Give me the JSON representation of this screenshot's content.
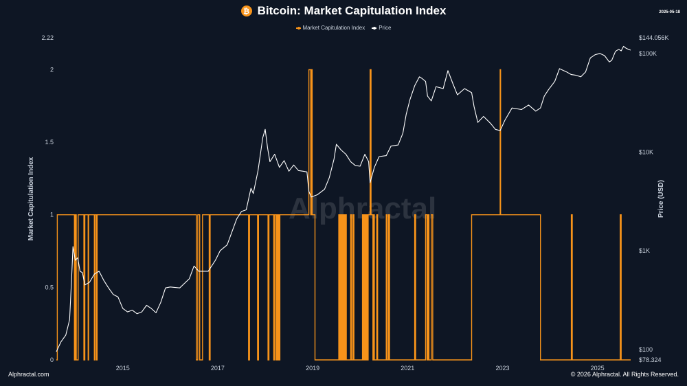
{
  "header": {
    "title": "Bitcoin: Market Capitulation Index",
    "date": "2025-05-18",
    "icon": "bitcoin-icon"
  },
  "legend": {
    "mci_label": "Market Capitulation Index",
    "price_label": "Price"
  },
  "footer": {
    "left": "Alphractal.com",
    "right": "© 2026 Alphractal. All Rights Reserved."
  },
  "watermark": "Alphractal",
  "colors": {
    "background": "#0e1624",
    "mci": "#f7931a",
    "price": "#ffffff"
  },
  "chart_data": {
    "type": "line",
    "title": "Bitcoin: Market Capitulation Index",
    "grid": false,
    "legend_position": "top-center",
    "x_range": [
      2013.6,
      2025.7
    ],
    "x_ticks": [
      {
        "value": 2015,
        "label": "2015"
      },
      {
        "value": 2017,
        "label": "2017"
      },
      {
        "value": 2019,
        "label": "2019"
      },
      {
        "value": 2021,
        "label": "2021"
      },
      {
        "value": 2023,
        "label": "2023"
      },
      {
        "value": 2025,
        "label": "2025"
      }
    ],
    "y_left": {
      "label": "Market Capitulation Index",
      "range": [
        0,
        2.22
      ],
      "ticks": [
        {
          "value": 0,
          "label": "0"
        },
        {
          "value": 0.5,
          "label": "0.5"
        },
        {
          "value": 1,
          "label": "1"
        },
        {
          "value": 1.5,
          "label": "1.5"
        },
        {
          "value": 2,
          "label": "2"
        },
        {
          "value": 2.22,
          "label": "2.22"
        }
      ]
    },
    "y_right": {
      "label": "Price (USD)",
      "scale": "log",
      "range": [
        78.324,
        144056
      ],
      "ticks": [
        {
          "value": 78.324,
          "label": "$78.324"
        },
        {
          "value": 100,
          "label": "$100"
        },
        {
          "value": 1000,
          "label": "$1K"
        },
        {
          "value": 10000,
          "label": "$10K"
        },
        {
          "value": 100000,
          "label": "$100K"
        },
        {
          "value": 144056,
          "label": "$144.056K"
        }
      ]
    },
    "series": [
      {
        "name": "Market Capitulation Index",
        "color": "#f7931a",
        "step": true,
        "points": [
          [
            2013.6,
            0
          ],
          [
            2013.62,
            1
          ],
          [
            2013.98,
            0
          ],
          [
            2014.0,
            1
          ],
          [
            2014.02,
            0
          ],
          [
            2014.06,
            1
          ],
          [
            2014.18,
            0
          ],
          [
            2014.2,
            1
          ],
          [
            2014.27,
            0
          ],
          [
            2014.28,
            1
          ],
          [
            2014.4,
            0
          ],
          [
            2014.42,
            1
          ],
          [
            2014.45,
            0
          ],
          [
            2014.46,
            1
          ],
          [
            2016.55,
            0
          ],
          [
            2016.58,
            1
          ],
          [
            2016.62,
            0
          ],
          [
            2016.68,
            1
          ],
          [
            2016.82,
            0
          ],
          [
            2016.84,
            1
          ],
          [
            2017.65,
            0
          ],
          [
            2017.67,
            1
          ],
          [
            2017.84,
            0
          ],
          [
            2017.86,
            1
          ],
          [
            2018.06,
            0
          ],
          [
            2018.08,
            1
          ],
          [
            2018.18,
            0
          ],
          [
            2018.2,
            1
          ],
          [
            2018.23,
            0
          ],
          [
            2018.24,
            1
          ],
          [
            2018.25,
            0
          ],
          [
            2018.27,
            1
          ],
          [
            2018.29,
            0
          ],
          [
            2018.31,
            1
          ],
          [
            2018.92,
            2
          ],
          [
            2018.96,
            1
          ],
          [
            2018.97,
            2
          ],
          [
            2018.99,
            1
          ],
          [
            2019.05,
            0
          ],
          [
            2019.55,
            1
          ],
          [
            2019.57,
            0
          ],
          [
            2019.59,
            1
          ],
          [
            2019.6,
            0
          ],
          [
            2019.62,
            1
          ],
          [
            2019.64,
            0
          ],
          [
            2019.66,
            1
          ],
          [
            2019.68,
            0
          ],
          [
            2019.69,
            1
          ],
          [
            2019.71,
            0
          ],
          [
            2019.8,
            1
          ],
          [
            2019.82,
            0
          ],
          [
            2019.85,
            1
          ],
          [
            2019.87,
            0
          ],
          [
            2020.05,
            1
          ],
          [
            2020.07,
            0
          ],
          [
            2020.09,
            1
          ],
          [
            2020.11,
            0
          ],
          [
            2020.13,
            1
          ],
          [
            2020.15,
            0
          ],
          [
            2020.17,
            1
          ],
          [
            2020.21,
            2
          ],
          [
            2020.23,
            1
          ],
          [
            2020.27,
            0
          ],
          [
            2020.28,
            1
          ],
          [
            2020.3,
            0
          ],
          [
            2020.35,
            1
          ],
          [
            2020.37,
            0
          ],
          [
            2020.55,
            1
          ],
          [
            2020.57,
            0
          ],
          [
            2020.6,
            1
          ],
          [
            2020.62,
            0
          ],
          [
            2021.15,
            1
          ],
          [
            2021.17,
            0
          ],
          [
            2021.38,
            1
          ],
          [
            2021.41,
            0
          ],
          [
            2021.43,
            1
          ],
          [
            2021.45,
            0
          ],
          [
            2021.5,
            1
          ],
          [
            2021.53,
            0
          ],
          [
            2022.35,
            1
          ],
          [
            2022.95,
            2
          ],
          [
            2022.96,
            1
          ],
          [
            2023.8,
            0
          ],
          [
            2024.45,
            1
          ],
          [
            2024.47,
            0
          ],
          [
            2025.48,
            1
          ],
          [
            2025.5,
            0
          ],
          [
            2025.7,
            0
          ]
        ]
      },
      {
        "name": "Price",
        "color": "#ffffff",
        "points": [
          [
            2013.6,
            95
          ],
          [
            2013.7,
            120
          ],
          [
            2013.8,
            140
          ],
          [
            2013.88,
            200
          ],
          [
            2013.92,
            500
          ],
          [
            2013.95,
            1100
          ],
          [
            2014.0,
            800
          ],
          [
            2014.05,
            850
          ],
          [
            2014.1,
            620
          ],
          [
            2014.15,
            600
          ],
          [
            2014.2,
            450
          ],
          [
            2014.3,
            480
          ],
          [
            2014.4,
            580
          ],
          [
            2014.5,
            620
          ],
          [
            2014.6,
            500
          ],
          [
            2014.7,
            420
          ],
          [
            2014.8,
            360
          ],
          [
            2014.9,
            340
          ],
          [
            2015.0,
            260
          ],
          [
            2015.1,
            240
          ],
          [
            2015.2,
            250
          ],
          [
            2015.3,
            230
          ],
          [
            2015.4,
            240
          ],
          [
            2015.5,
            280
          ],
          [
            2015.6,
            260
          ],
          [
            2015.7,
            235
          ],
          [
            2015.8,
            300
          ],
          [
            2015.9,
            420
          ],
          [
            2016.0,
            430
          ],
          [
            2016.2,
            420
          ],
          [
            2016.4,
            520
          ],
          [
            2016.5,
            700
          ],
          [
            2016.6,
            620
          ],
          [
            2016.8,
            620
          ],
          [
            2016.95,
            800
          ],
          [
            2017.05,
            1000
          ],
          [
            2017.2,
            1150
          ],
          [
            2017.4,
            2100
          ],
          [
            2017.5,
            2500
          ],
          [
            2017.6,
            2600
          ],
          [
            2017.7,
            4300
          ],
          [
            2017.75,
            3800
          ],
          [
            2017.85,
            6500
          ],
          [
            2017.95,
            14000
          ],
          [
            2018.0,
            17000
          ],
          [
            2018.05,
            11000
          ],
          [
            2018.1,
            8000
          ],
          [
            2018.2,
            9500
          ],
          [
            2018.3,
            7000
          ],
          [
            2018.4,
            8200
          ],
          [
            2018.5,
            6400
          ],
          [
            2018.6,
            7400
          ],
          [
            2018.7,
            6500
          ],
          [
            2018.8,
            6400
          ],
          [
            2018.88,
            6300
          ],
          [
            2018.92,
            4000
          ],
          [
            2018.97,
            3500
          ],
          [
            2019.1,
            3700
          ],
          [
            2019.25,
            4200
          ],
          [
            2019.35,
            5500
          ],
          [
            2019.45,
            8500
          ],
          [
            2019.5,
            12000
          ],
          [
            2019.6,
            10500
          ],
          [
            2019.7,
            9500
          ],
          [
            2019.8,
            8000
          ],
          [
            2019.9,
            7300
          ],
          [
            2020.0,
            7200
          ],
          [
            2020.1,
            9500
          ],
          [
            2020.18,
            8000
          ],
          [
            2020.21,
            4900
          ],
          [
            2020.3,
            7000
          ],
          [
            2020.4,
            9000
          ],
          [
            2020.55,
            9200
          ],
          [
            2020.65,
            11500
          ],
          [
            2020.8,
            11800
          ],
          [
            2020.9,
            15500
          ],
          [
            2020.97,
            24000
          ],
          [
            2021.05,
            34000
          ],
          [
            2021.15,
            47000
          ],
          [
            2021.25,
            58000
          ],
          [
            2021.3,
            56000
          ],
          [
            2021.38,
            52000
          ],
          [
            2021.42,
            37000
          ],
          [
            2021.5,
            33000
          ],
          [
            2021.6,
            46000
          ],
          [
            2021.75,
            44000
          ],
          [
            2021.85,
            67000
          ],
          [
            2021.95,
            50000
          ],
          [
            2022.05,
            38000
          ],
          [
            2022.2,
            44000
          ],
          [
            2022.35,
            40000
          ],
          [
            2022.4,
            29000
          ],
          [
            2022.48,
            20000
          ],
          [
            2022.6,
            23000
          ],
          [
            2022.75,
            19500
          ],
          [
            2022.85,
            17000
          ],
          [
            2022.95,
            16500
          ],
          [
            2023.05,
            21000
          ],
          [
            2023.2,
            28000
          ],
          [
            2023.4,
            27000
          ],
          [
            2023.55,
            30000
          ],
          [
            2023.7,
            26000
          ],
          [
            2023.8,
            28000
          ],
          [
            2023.88,
            37000
          ],
          [
            2023.97,
            43000
          ],
          [
            2024.1,
            52000
          ],
          [
            2024.2,
            70000
          ],
          [
            2024.35,
            65000
          ],
          [
            2024.45,
            61000
          ],
          [
            2024.55,
            60000
          ],
          [
            2024.65,
            58000
          ],
          [
            2024.75,
            65000
          ],
          [
            2024.85,
            90000
          ],
          [
            2024.95,
            97000
          ],
          [
            2025.05,
            100000
          ],
          [
            2025.15,
            95000
          ],
          [
            2025.25,
            82000
          ],
          [
            2025.3,
            85000
          ],
          [
            2025.38,
            105000
          ],
          [
            2025.45,
            110000
          ],
          [
            2025.5,
            106000
          ],
          [
            2025.55,
            118000
          ],
          [
            2025.6,
            113000
          ],
          [
            2025.65,
            110000
          ],
          [
            2025.7,
            108000
          ]
        ]
      }
    ]
  }
}
